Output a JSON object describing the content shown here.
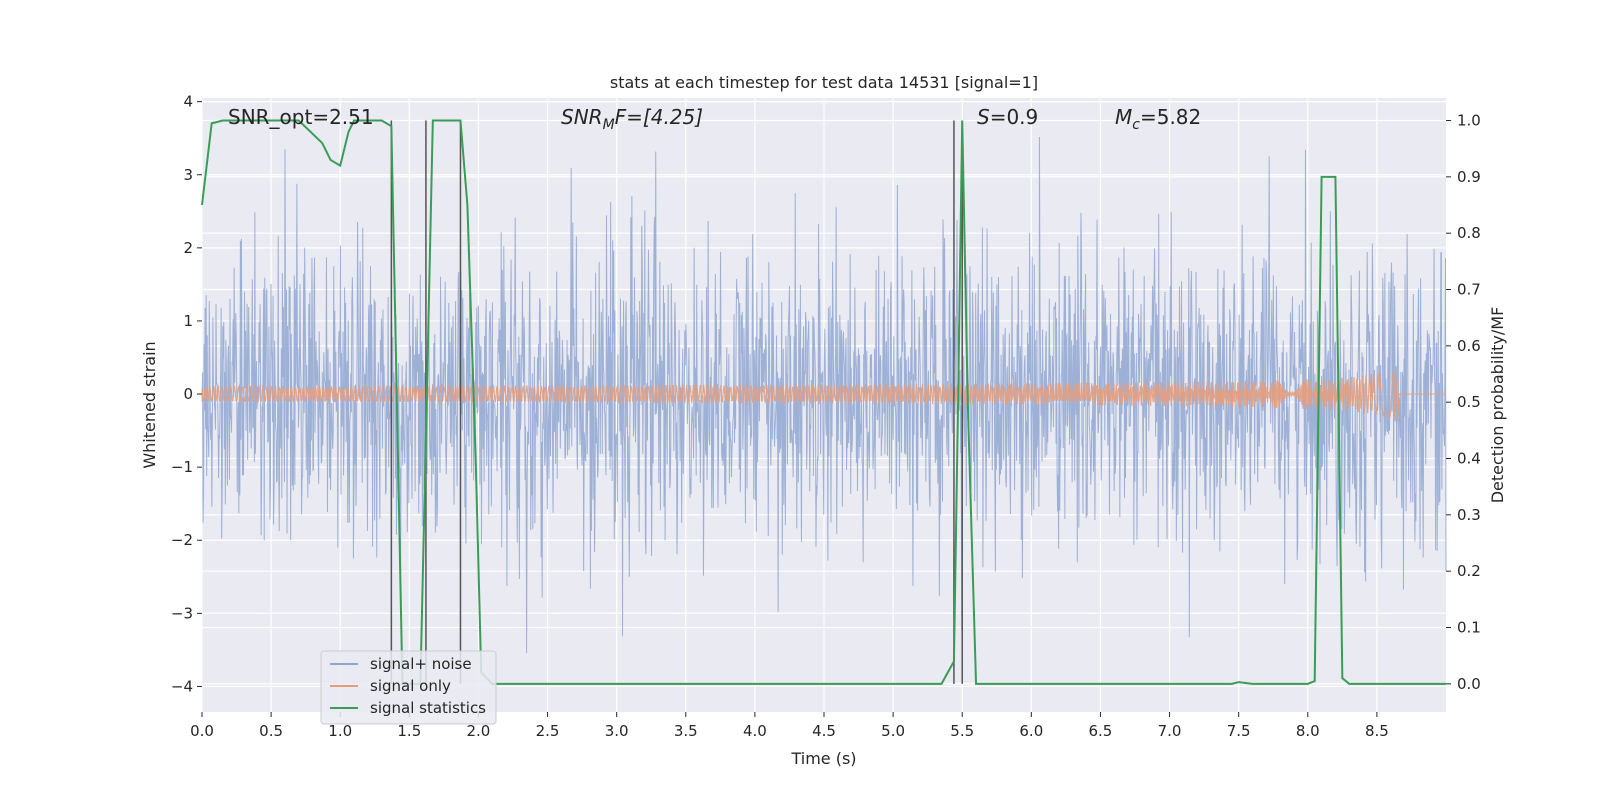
{
  "chart_data": {
    "type": "line",
    "title": "stats at each timestep for test data 14531 [signal=1]",
    "xlabel": "Time (s)",
    "ylabel_left": "Whitened strain",
    "ylabel_right": "Detection probability/MF",
    "xlim": [
      0.0,
      9.0
    ],
    "ylim_left": [
      -4.35,
      4.05
    ],
    "ylim_right": [
      -0.05,
      1.04
    ],
    "x_ticks": [
      "0.0",
      "0.5",
      "1.0",
      "1.5",
      "2.0",
      "2.5",
      "3.0",
      "3.5",
      "4.0",
      "4.5",
      "5.0",
      "5.5",
      "6.0",
      "6.5",
      "7.0",
      "7.5",
      "8.0",
      "8.5"
    ],
    "y_ticks_left": [
      "4",
      "3",
      "2",
      "1",
      "0",
      "−1",
      "−2",
      "−3",
      "−4"
    ],
    "y_ticks_right": [
      "1.0",
      "0.9",
      "0.8",
      "0.7",
      "0.6",
      "0.5",
      "0.4",
      "0.3",
      "0.2",
      "0.1",
      "0.0"
    ],
    "grid": true,
    "legend_position": "lower-left",
    "annotations": {
      "snr_opt": "SNR_opt=2.51",
      "snr_mf_name": "SNR",
      "snr_mf_sub": "M",
      "snr_mf_rest": "F=[4.25]",
      "s_name": "S",
      "s_rest": "=0.9",
      "mc_name": "M",
      "mc_sub": "c",
      "mc_rest": "=5.82"
    },
    "series": [
      {
        "name": "signal+ noise",
        "color": "#8fa6d1",
        "description": "whitened noise, approx. ±2 with peaks to ±3.5"
      },
      {
        "name": "signal only",
        "color": "#e39e7f",
        "description": "chirp growing in amplitude toward merger near 8.65 s, peak amplitude about 0.4"
      },
      {
        "name": "signal statistics",
        "color": "#3a9c55",
        "x": [
          0.0,
          0.07,
          0.15,
          0.3,
          0.5,
          0.7,
          0.87,
          0.93,
          1.0,
          1.06,
          1.1,
          1.2,
          1.3,
          1.37,
          1.41,
          1.45,
          1.58,
          1.63,
          1.67,
          1.72,
          1.8,
          1.87,
          1.92,
          1.98,
          2.02,
          2.1,
          2.5,
          3.0,
          3.5,
          4.0,
          4.5,
          5.0,
          5.35,
          5.44,
          5.47,
          5.5,
          5.54,
          5.6,
          5.7,
          6.0,
          6.5,
          7.0,
          7.45,
          7.5,
          7.6,
          8.0,
          8.05,
          8.1,
          8.15,
          8.2,
          8.25,
          8.3,
          8.5,
          9.0
        ],
        "values": [
          0.85,
          0.995,
          1.0,
          1.0,
          1.0,
          1.0,
          0.96,
          0.93,
          0.92,
          0.98,
          1.0,
          1.0,
          1.0,
          0.99,
          0.5,
          0.0,
          0.0,
          0.55,
          1.0,
          1.0,
          1.0,
          1.0,
          0.85,
          0.4,
          0.02,
          0.0,
          0.0,
          0.0,
          0.0,
          0.0,
          0.0,
          0.0,
          0.0,
          0.04,
          0.5,
          1.0,
          0.5,
          0.0,
          0.0,
          0.0,
          0.0,
          0.0,
          0.0,
          0.003,
          0.0,
          0.0,
          0.005,
          0.9,
          0.9,
          0.9,
          0.01,
          0.0,
          0.0,
          0.0
        ]
      }
    ],
    "vlines_x": [
      1.37,
      1.62,
      1.87,
      5.44,
      5.5
    ]
  }
}
